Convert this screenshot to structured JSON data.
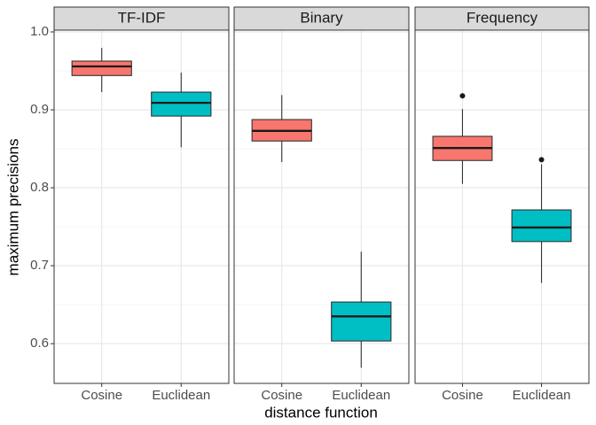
{
  "chart_data": {
    "type": "box",
    "ylabel": "maximum precisions",
    "xlabel": "distance function",
    "ylim": [
      0.549,
      1.0023
    ],
    "yticks": [
      0.6,
      0.7,
      0.8,
      0.9,
      {
        "value": 1.0,
        "label": "1.0"
      }
    ],
    "minor_yticks": [
      0.65,
      0.75,
      0.85,
      0.95
    ],
    "grid": true,
    "colors": [
      "#F8766D",
      "#00BFC4"
    ],
    "facets": [
      {
        "title": "TF-IDF",
        "categories": [
          "Cosine",
          "Euclidean"
        ],
        "boxes": [
          {
            "min": 0.9227,
            "q1": 0.944,
            "median": 0.9557,
            "q3": 0.9625,
            "max": 0.9795,
            "outliers": []
          },
          {
            "min": 0.852,
            "q1": 0.892,
            "median": 0.909,
            "q3": 0.9227,
            "max": 0.9477,
            "outliers": []
          }
        ]
      },
      {
        "title": "Binary",
        "categories": [
          "Cosine",
          "Euclidean"
        ],
        "boxes": [
          {
            "min": 0.833,
            "q1": 0.86,
            "median": 0.873,
            "q3": 0.8875,
            "max": 0.919,
            "outliers": []
          },
          {
            "min": 0.569,
            "q1": 0.6034,
            "median": 0.635,
            "q3": 0.6534,
            "max": 0.718,
            "outliers": []
          }
        ]
      },
      {
        "title": "Frequency",
        "categories": [
          "Cosine",
          "Euclidean"
        ],
        "boxes": [
          {
            "min": 0.805,
            "q1": 0.835,
            "median": 0.851,
            "q3": 0.866,
            "max": 0.901,
            "outliers": [
              0.918
            ]
          },
          {
            "min": 0.678,
            "q1": 0.731,
            "median": 0.749,
            "q3": 0.7716,
            "max": 0.83,
            "outliers": [
              0.836
            ]
          }
        ]
      }
    ]
  }
}
